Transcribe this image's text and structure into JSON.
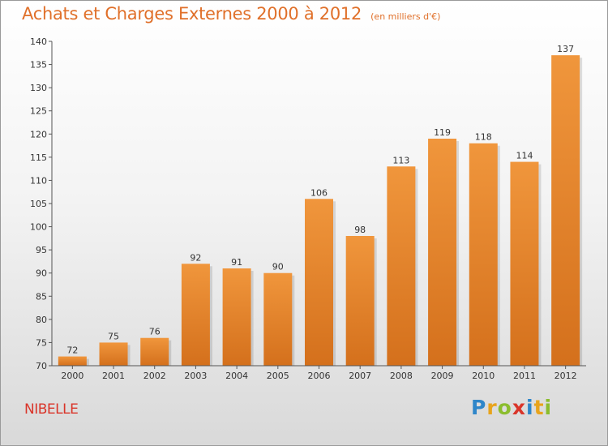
{
  "header": {
    "title": "Achats et Charges Externes 2000 à 2012",
    "subtitle": "(en milliers d'€)"
  },
  "footer": {
    "place": "NIBELLE",
    "brand_letters": [
      "P",
      "r",
      "o",
      "x",
      "i",
      "t",
      "i"
    ],
    "brand_colors": [
      "#2f86c9",
      "#e8a41c",
      "#8bbd2e",
      "#d9352a",
      "#2f86c9",
      "#e8a41c",
      "#8bbd2e"
    ]
  },
  "chart_data": {
    "type": "bar",
    "title": "Achats et Charges Externes 2000 à 2012",
    "subtitle": "(en milliers d'€)",
    "categories": [
      "2000",
      "2001",
      "2002",
      "2003",
      "2004",
      "2005",
      "2006",
      "2007",
      "2008",
      "2009",
      "2010",
      "2011",
      "2012"
    ],
    "values": [
      72,
      75,
      76,
      92,
      91,
      90,
      106,
      98,
      113,
      119,
      118,
      114,
      137
    ],
    "ylim": [
      70,
      140
    ],
    "yticks": [
      70,
      75,
      80,
      85,
      90,
      95,
      100,
      105,
      110,
      115,
      120,
      125,
      130,
      135,
      140
    ],
    "bar_color": "#f0963c",
    "bar_color_dark": "#d4701c",
    "grid": false,
    "data_labels": true
  }
}
